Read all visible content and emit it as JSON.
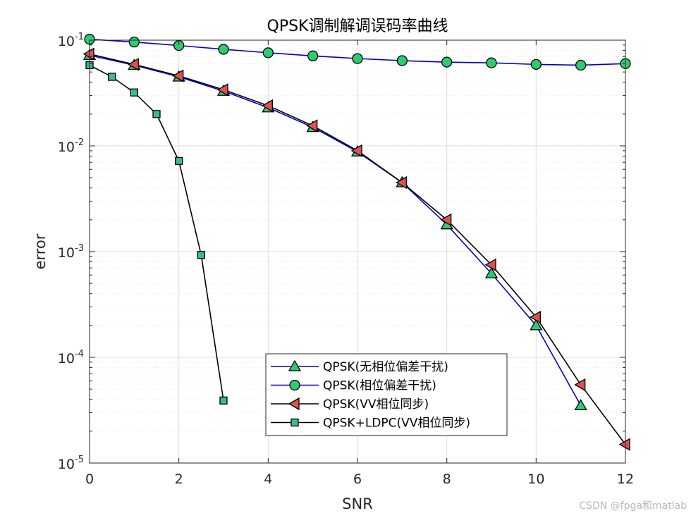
{
  "chart_data": {
    "type": "line",
    "title": "QPSK调制解调误码率曲线",
    "xlabel": "SNR",
    "ylabel": "error",
    "xlim": [
      0,
      12
    ],
    "ylim": [
      1e-05,
      0.1
    ],
    "y_scale": "log",
    "grid": true,
    "legend_position": "bottom-center",
    "x_ticks": [
      "0",
      "2",
      "4",
      "6",
      "8",
      "10",
      "12"
    ],
    "y_ticks": [
      {
        "base": "10",
        "exp": "-5"
      },
      {
        "base": "10",
        "exp": "-4"
      },
      {
        "base": "10",
        "exp": "-3"
      },
      {
        "base": "10",
        "exp": "-2"
      },
      {
        "base": "10",
        "exp": "-1"
      }
    ],
    "series": [
      {
        "name": "QPSK(无相位偏差干扰)",
        "color": "#0000cd",
        "marker": "triangle-up",
        "marker_color": "#2ecc71",
        "x": [
          0,
          1,
          2,
          3,
          4,
          5,
          6,
          7,
          8,
          9,
          10,
          11
        ],
        "y": [
          0.072,
          0.058,
          0.045,
          0.033,
          0.023,
          0.015,
          0.0088,
          0.0045,
          0.0018,
          0.00062,
          0.0002,
          3.5e-05
        ]
      },
      {
        "name": "QPSK(相位偏差干扰)",
        "color": "#0000cd",
        "marker": "circle",
        "marker_color": "#2ecc71",
        "x": [
          0,
          1,
          2,
          3,
          4,
          5,
          6,
          7,
          8,
          9,
          10,
          11,
          12
        ],
        "y": [
          0.102,
          0.096,
          0.089,
          0.082,
          0.076,
          0.071,
          0.067,
          0.064,
          0.062,
          0.061,
          0.059,
          0.058,
          0.06
        ]
      },
      {
        "name": "QPSK(VV相位同步)",
        "color": "#000000",
        "marker": "triangle-left",
        "marker_color": "#e05050",
        "x": [
          0,
          1,
          2,
          3,
          4,
          5,
          6,
          7,
          8,
          9,
          10,
          11,
          12
        ],
        "y": [
          0.074,
          0.059,
          0.046,
          0.034,
          0.024,
          0.0155,
          0.009,
          0.0045,
          0.002,
          0.00075,
          0.00024,
          5.5e-05,
          1.5e-05
        ]
      },
      {
        "name": "QPSK+LDPC(VV相位同步)",
        "color": "#000000",
        "marker": "square",
        "marker_color": "#3cb89a",
        "x": [
          0,
          0.5,
          1,
          1.5,
          2,
          2.5,
          3
        ],
        "y": [
          0.058,
          0.045,
          0.032,
          0.02,
          0.0072,
          0.00093,
          3.9e-05
        ]
      }
    ]
  },
  "watermark": "CSDN @fpga和matlab"
}
